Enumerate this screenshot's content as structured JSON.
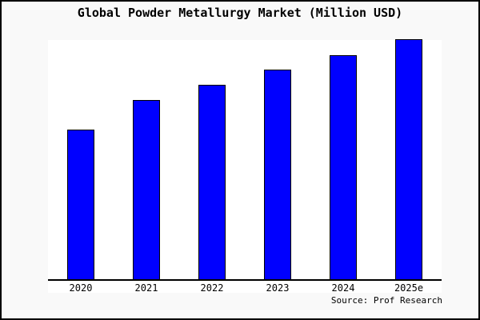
{
  "footer": {
    "source": "Source: Prof Research"
  },
  "colors": {
    "bar_fill": "#0000ff",
    "bar_border": "#000000",
    "background": "#f9f9f9",
    "plot_background": "#ffffff",
    "axis": "#000000",
    "frame_border": "#000000",
    "text": "#000000"
  },
  "chart_data": {
    "type": "bar",
    "title": "Global Powder Metallurgy Market (Million USD)",
    "categories": [
      "2020",
      "2021",
      "2022",
      "2023",
      "2024",
      "2025e"
    ],
    "values": [
      62.5,
      74.8,
      81.1,
      87.4,
      93.4,
      100
    ],
    "value_note": "No y-axis scale or data labels shown; values are bar heights as percent of tallest bar (2025e = 100)",
    "xlabel": "",
    "ylabel": "",
    "y_axis_visible": false,
    "gridlines": false,
    "legend": null,
    "bar_color": "#0000ff",
    "source": "Source: Prof Research"
  }
}
